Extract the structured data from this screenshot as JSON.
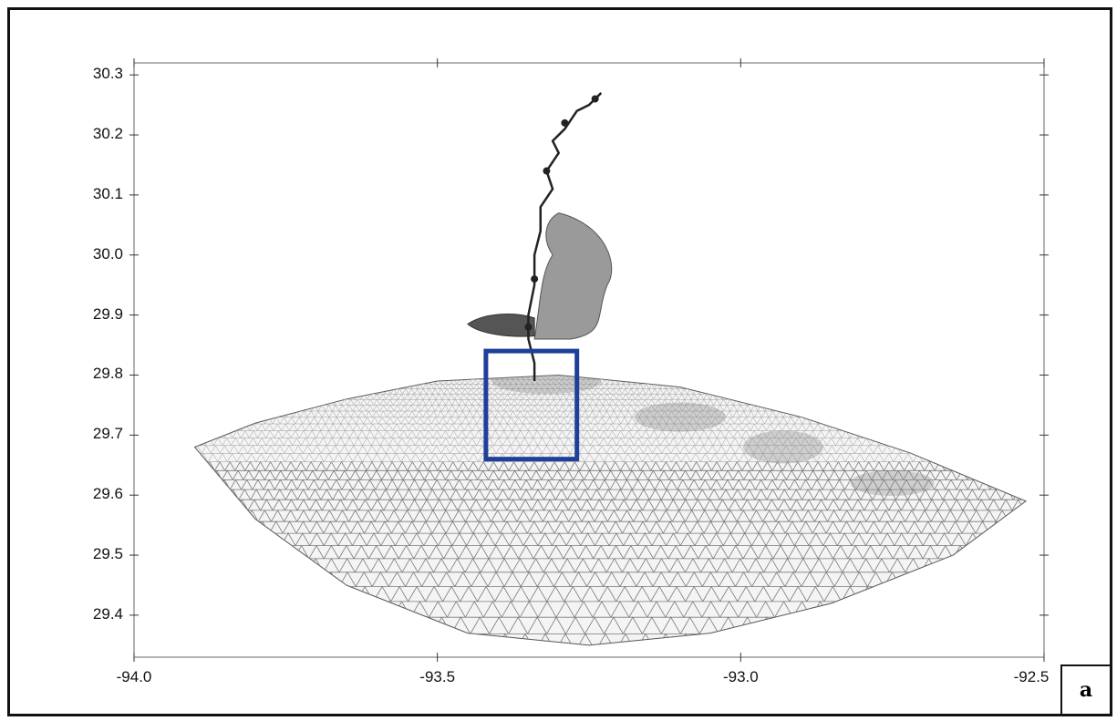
{
  "chart_data": {
    "type": "mesh-map",
    "y_ticks": [
      "30.3",
      "30.2",
      "30.1",
      "30.0",
      "29.9",
      "29.8",
      "29.7",
      "29.6",
      "29.5",
      "29.4"
    ],
    "y_values": [
      30.3,
      30.2,
      30.1,
      30.0,
      29.9,
      29.8,
      29.7,
      29.6,
      29.5,
      29.4
    ],
    "x_ticks": [
      "-94.0",
      "-93.5",
      "-93.0",
      "-92.5"
    ],
    "x_values": [
      -94.0,
      -93.5,
      -93.0,
      -92.5
    ],
    "xlim": [
      -94.0,
      -92.5
    ],
    "ylim": [
      29.33,
      30.32
    ],
    "highlight_box": {
      "x_range": [
        -93.42,
        -93.27
      ],
      "y_range": [
        29.66,
        29.84
      ],
      "color": "#1f3f9a"
    },
    "domain_outline_lon_lat": [
      [
        -93.9,
        29.68
      ],
      [
        -93.8,
        29.72
      ],
      [
        -93.65,
        29.76
      ],
      [
        -93.5,
        29.79
      ],
      [
        -93.3,
        29.8
      ],
      [
        -93.1,
        29.78
      ],
      [
        -92.9,
        29.73
      ],
      [
        -92.72,
        29.67
      ],
      [
        -92.53,
        29.59
      ],
      [
        -92.65,
        29.5
      ],
      [
        -92.85,
        29.42
      ],
      [
        -93.05,
        29.37
      ],
      [
        -93.25,
        29.35
      ],
      [
        -93.45,
        29.37
      ],
      [
        -93.65,
        29.45
      ],
      [
        -93.8,
        29.56
      ]
    ]
  },
  "panel_label": "a"
}
